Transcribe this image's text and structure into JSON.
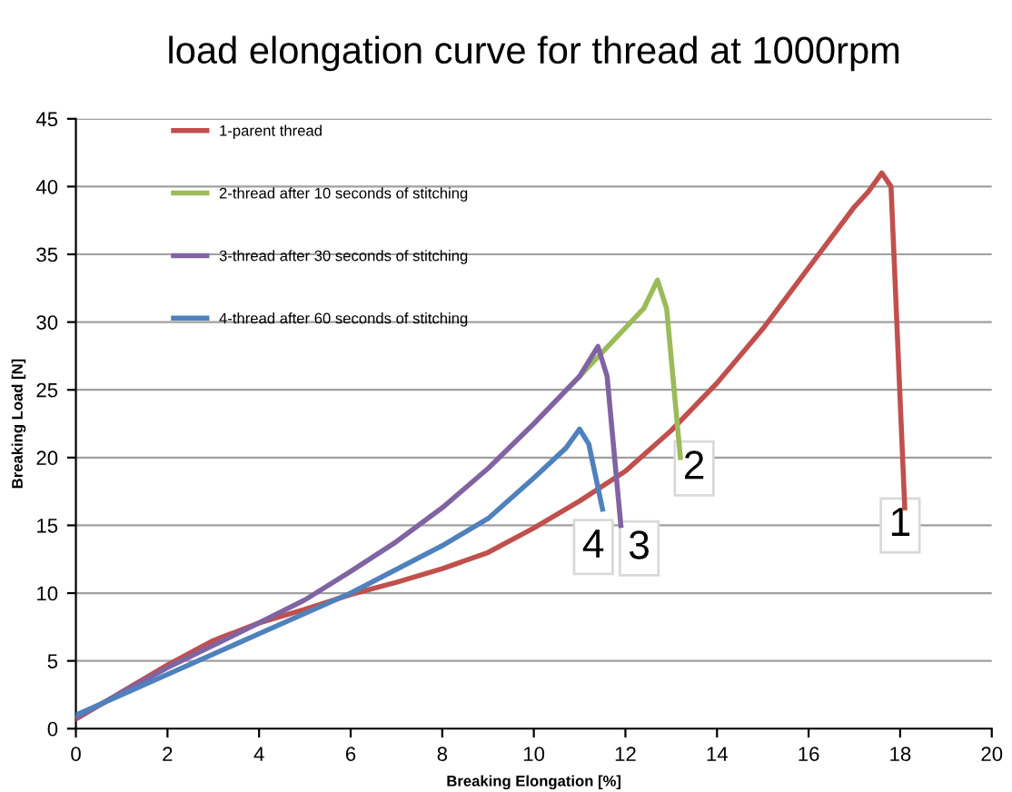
{
  "chart_data": {
    "type": "line",
    "title": "load elongation curve for thread at 1000rpm",
    "xlabel": "Breaking Elongation [%]",
    "ylabel": "Breaking Load [N]",
    "xlim": [
      0,
      20
    ],
    "ylim": [
      0,
      45
    ],
    "xticks": [
      0,
      2,
      4,
      6,
      8,
      10,
      12,
      14,
      16,
      18,
      20
    ],
    "yticks": [
      0,
      5,
      10,
      15,
      20,
      25,
      30,
      35,
      40,
      45
    ],
    "grid": "y",
    "legend": "top left",
    "marker": "none",
    "line_style": "solid",
    "series": [
      {
        "name": "1-parent thread",
        "color": "#c0504d",
        "x": [
          0,
          1,
          2,
          3,
          4,
          5,
          6,
          7,
          8,
          9,
          10,
          11,
          12,
          13,
          14,
          15,
          16,
          17,
          17.3,
          17.6,
          17.8,
          18.1
        ],
        "values": [
          0.7,
          2.7,
          4.7,
          6.5,
          7.8,
          8.8,
          9.9,
          10.8,
          11.8,
          13,
          14.8,
          16.8,
          19,
          22,
          25.5,
          29.5,
          34,
          38.5,
          39.6,
          41,
          40,
          16.3
        ]
      },
      {
        "name": "2-thread after 10 seconds of stitching",
        "color": "#9bbb59",
        "x": [
          11,
          12.4,
          12.7,
          12.9,
          13.2
        ],
        "values": [
          26,
          31,
          33.1,
          31,
          20
        ]
      },
      {
        "name": "3-thread after 30 seconds of stitching",
        "color": "#8064a2",
        "x": [
          0,
          2,
          4,
          5,
          6,
          7,
          8,
          9,
          10,
          11,
          11.4,
          11.6,
          11.9
        ],
        "values": [
          0.8,
          4.5,
          7.8,
          9.5,
          11.6,
          13.8,
          16.3,
          19.2,
          22.5,
          26,
          28.2,
          26,
          15
        ]
      },
      {
        "name": "4-thread after 60 seconds of stitching",
        "color": "#4f81bd",
        "x": [
          0,
          2,
          4,
          6,
          8,
          9,
          10,
          10.7,
          11,
          11.2,
          11.5
        ],
        "values": [
          1,
          4,
          7,
          10,
          13.5,
          15.5,
          18.5,
          20.7,
          22.1,
          21,
          16.2
        ]
      }
    ],
    "annotations": [
      {
        "text": "1",
        "x": 18,
        "y": 15
      },
      {
        "text": "2",
        "x": 13.5,
        "y": 19.2
      },
      {
        "text": "3",
        "x": 12.3,
        "y": 13.3
      },
      {
        "text": "4",
        "x": 11.3,
        "y": 13.4
      }
    ]
  }
}
